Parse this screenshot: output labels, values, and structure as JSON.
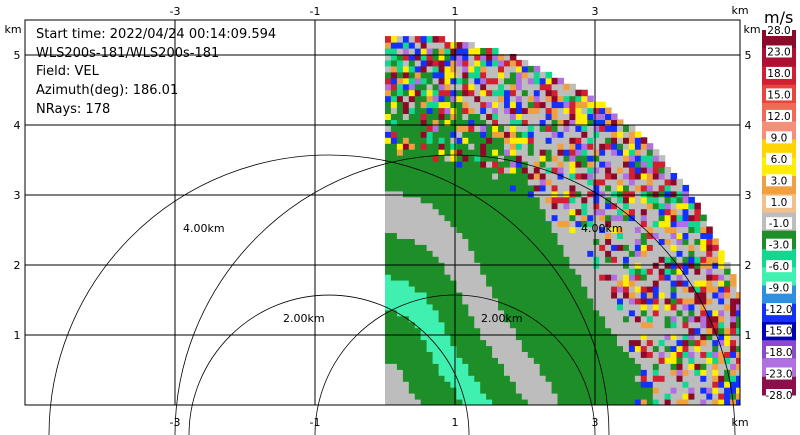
{
  "info": {
    "start_time": "Start time: 2022/04/24 00:14:09.594",
    "instrument": "WLS200s-181/WLS200s-181",
    "field": "Field: VEL",
    "azimuth": "Azimuth(deg): 186.01",
    "nrays": "NRays: 178"
  },
  "chart_data": {
    "type": "heatmap",
    "axes_unit": "km",
    "xlim": [
      -3.5,
      4.2
    ],
    "ylim": [
      0,
      5.3
    ],
    "x_ticks": [
      "-3",
      "-1",
      "1",
      "3"
    ],
    "x_tick_values": [
      -3,
      -1,
      1,
      3
    ],
    "y_ticks": [
      "1",
      "2",
      "3",
      "4",
      "5"
    ],
    "y_tick_values": [
      1,
      2,
      3,
      4,
      5
    ],
    "grid": true,
    "range_rings": [
      {
        "label": "2.00km",
        "radius_km": 2
      },
      {
        "label": "4.00km",
        "radius_km": 4
      }
    ],
    "ring_labels_near_data": [
      "2.00km",
      "4.00km"
    ],
    "colorbar": {
      "unit": "m/s",
      "ticks": [
        "28.0",
        "23.0",
        "18.0",
        "15.0",
        "12.0",
        "9.0",
        "6.0",
        "3.0",
        "1.0",
        "-1.0",
        "-3.0",
        "-6.0",
        "-9.0",
        "-12.0",
        "-15.0",
        "-18.0",
        "-23.0",
        "-28.0"
      ],
      "colors": [
        "#8b0a2a",
        "#b01031",
        "#d02032",
        "#e8453f",
        "#f06a55",
        "#f58f7a",
        "#ffd400",
        "#ffee00",
        "#f0a040",
        "#f2c08a",
        "#bdbdbd",
        "#1e8f28",
        "#11d88e",
        "#40f0b0",
        "#2c8fe0",
        "#1330ff",
        "#0000b4",
        "#8a4ad0",
        "#b070e0",
        "#8a0f4a"
      ]
    },
    "sector": {
      "max_range_km": 5.3,
      "x_start_km": 0.0
    },
    "bands": [
      {
        "r_from": 0.0,
        "r_to": 0.05,
        "color": "#1e8f28"
      },
      {
        "r_from": 0.05,
        "r_to": 0.5,
        "color": "#bdbdbd"
      },
      {
        "r_from": 0.5,
        "r_to": 1.1,
        "color": "#1e8f28"
      },
      {
        "r_from": 1.1,
        "r_to": 1.5,
        "color": "#40f0b0"
      },
      {
        "r_from": 1.5,
        "r_to": 2.0,
        "color": "#1e8f28"
      },
      {
        "r_from": 2.0,
        "r_to": 2.5,
        "color": "#bdbdbd"
      },
      {
        "r_from": 2.5,
        "r_to": 3.3,
        "color": "#1e8f28"
      },
      {
        "r_from": 3.3,
        "r_to": 3.9,
        "color": "#1e8f28"
      },
      {
        "r_from": 3.9,
        "r_to": 5.3,
        "color": "#bdbdbd"
      }
    ],
    "noise_from_range_km": 3.6,
    "noise_palette": [
      "#8b0a2a",
      "#d02032",
      "#ffee00",
      "#11d88e",
      "#1330ff",
      "#b070e0",
      "#f0a040",
      "#bdbdbd",
      "#1e8f28"
    ]
  }
}
